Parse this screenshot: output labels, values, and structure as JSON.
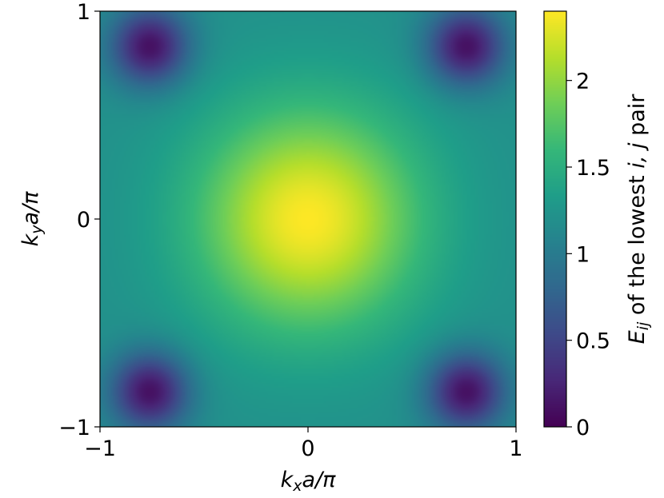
{
  "chart_data": {
    "type": "heatmap",
    "title": "",
    "xlabel_parts": [
      {
        "t": "k",
        "italic": true
      },
      {
        "t": "x",
        "italic": true,
        "sub": true
      },
      {
        "t": "a/π",
        "italic": true
      }
    ],
    "ylabel_parts": [
      {
        "t": "k",
        "italic": true
      },
      {
        "t": "y",
        "italic": true,
        "sub": true
      },
      {
        "t": "a/π",
        "italic": true
      }
    ],
    "colorbar_label_parts": [
      {
        "t": "E",
        "italic": true
      },
      {
        "t": "ij",
        "italic": true,
        "sub": true
      },
      {
        "t": " of the lowest ",
        "italic": false
      },
      {
        "t": "i, j",
        "italic": true
      },
      {
        "t": " pair",
        "italic": false
      }
    ],
    "xlim": [
      -1,
      1
    ],
    "ylim": [
      -1,
      1
    ],
    "xticks": [
      {
        "v": -1,
        "label": "−1"
      },
      {
        "v": 0,
        "label": "0"
      },
      {
        "v": 1,
        "label": "1"
      }
    ],
    "yticks": [
      {
        "v": -1,
        "label": "−1"
      },
      {
        "v": 0,
        "label": "0"
      },
      {
        "v": 1,
        "label": "1"
      }
    ],
    "colorbar": {
      "colormap": "viridis",
      "range": [
        0,
        2.4
      ],
      "ticks": [
        {
          "v": 0,
          "label": "0"
        },
        {
          "v": 0.5,
          "label": "0.5"
        },
        {
          "v": 1,
          "label": "1"
        },
        {
          "v": 1.5,
          "label": "1.5"
        },
        {
          "v": 2,
          "label": "2"
        }
      ]
    },
    "field": {
      "description_free": true,
      "peak": {
        "x": 0,
        "y": 0,
        "value": 2.4
      },
      "minima": [
        {
          "x": -0.76,
          "y": 0.83,
          "value": 0.1
        },
        {
          "x": 0.76,
          "y": 0.83,
          "value": 0.1
        },
        {
          "x": -0.76,
          "y": -0.83,
          "value": 0.1
        },
        {
          "x": 0.76,
          "y": -0.83,
          "value": 0.1
        }
      ],
      "edge_midpoint_value": 1.2
    },
    "viridis": [
      "#440154",
      "#482878",
      "#3e4a89",
      "#31688e",
      "#26828e",
      "#1f9e89",
      "#35b779",
      "#6ece58",
      "#b5de2b",
      "#fde725"
    ]
  }
}
